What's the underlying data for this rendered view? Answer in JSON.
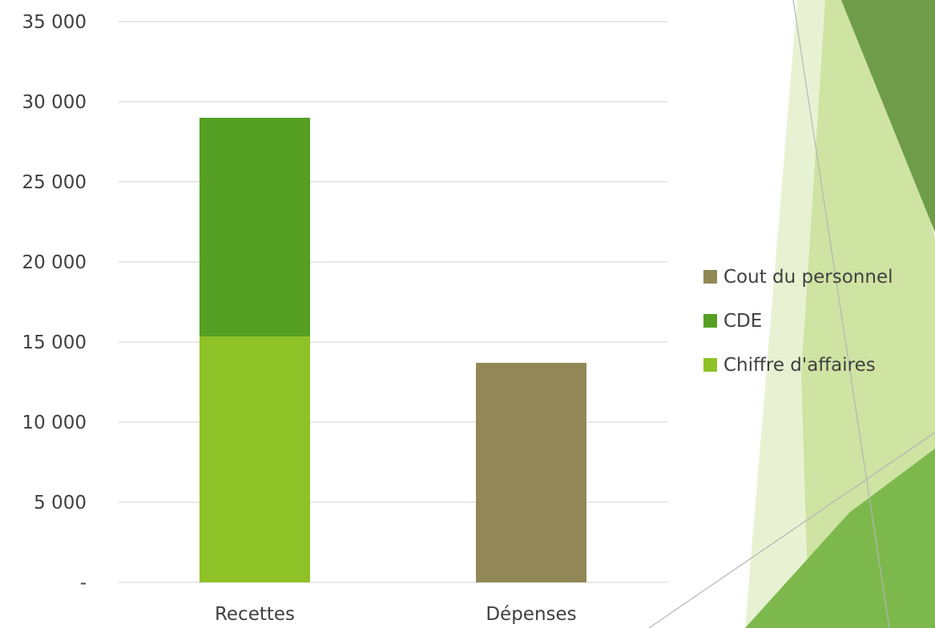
{
  "chart_data": {
    "type": "bar",
    "stacked": true,
    "categories": [
      "Recettes",
      "Dépenses"
    ],
    "series": [
      {
        "name": "Chiffre d'affaires",
        "values": [
          15350,
          0
        ],
        "color": "#8fc227"
      },
      {
        "name": "CDE",
        "values": [
          13650,
          0
        ],
        "color": "#55a024"
      },
      {
        "name": "Cout du personnel",
        "values": [
          0,
          13700
        ],
        "color": "#928756"
      }
    ],
    "ylim": [
      0,
      35000
    ],
    "y_ticks": [
      0,
      5000,
      10000,
      15000,
      20000,
      25000,
      30000,
      35000
    ],
    "y_tick_labels": [
      "-",
      "5 000",
      "10 000",
      "15 000",
      "20 000",
      "25 000",
      "30 000",
      "35 000"
    ],
    "grid": true,
    "legend_position": "right",
    "legend_order": [
      "Cout du personnel",
      "CDE",
      "Chiffre d'affaires"
    ],
    "title": "",
    "xlabel": "",
    "ylabel": ""
  },
  "theme": {
    "gridline_color": "#d9d9d9",
    "decor_colors": [
      "#e4efc9",
      "#c9e09b",
      "#6b9a44",
      "#7ab648"
    ]
  }
}
